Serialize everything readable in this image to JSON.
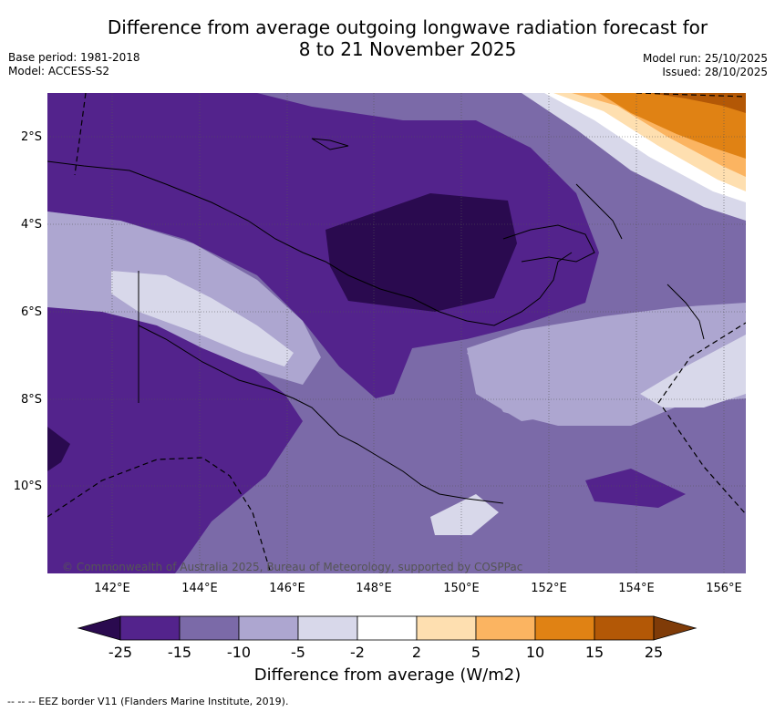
{
  "header": {
    "title_line1": "Difference from average outgoing longwave radiation forecast for",
    "title_line2": "8 to 21 November 2025",
    "base_period": "Base period: 1981-2018",
    "model": "Model: ACCESS-S2",
    "model_run": "Model run: 25/10/2025",
    "issued": "Issued: 28/10/2025"
  },
  "map": {
    "lat_labels": [
      "2°S",
      "4°S",
      "6°S",
      "8°S",
      "10°S"
    ],
    "lon_labels": [
      "142°E",
      "144°E",
      "146°E",
      "148°E",
      "150°E",
      "152°E",
      "154°E",
      "156°E"
    ],
    "copyright": "© Commonwealth of Australia 2025, Bureau of Meteorology, supported by COSPPac"
  },
  "legend": {
    "title": "Difference from average (W/m2)",
    "tick_labels": [
      "-25",
      "-15",
      "-10",
      "-5",
      "-2",
      "2",
      "5",
      "10",
      "15",
      "25"
    ],
    "colors": [
      "#2a0a4f",
      "#53238c",
      "#7b6aa8",
      "#ada6d0",
      "#d8d8ea",
      "#ffffff",
      "#fedfb0",
      "#fbb461",
      "#e08214",
      "#b35806",
      "#7f3b08"
    ]
  },
  "footer": {
    "eez_note": "--  --  -- EEZ border V11 (Flanders Marine Institute, 2019)."
  }
}
